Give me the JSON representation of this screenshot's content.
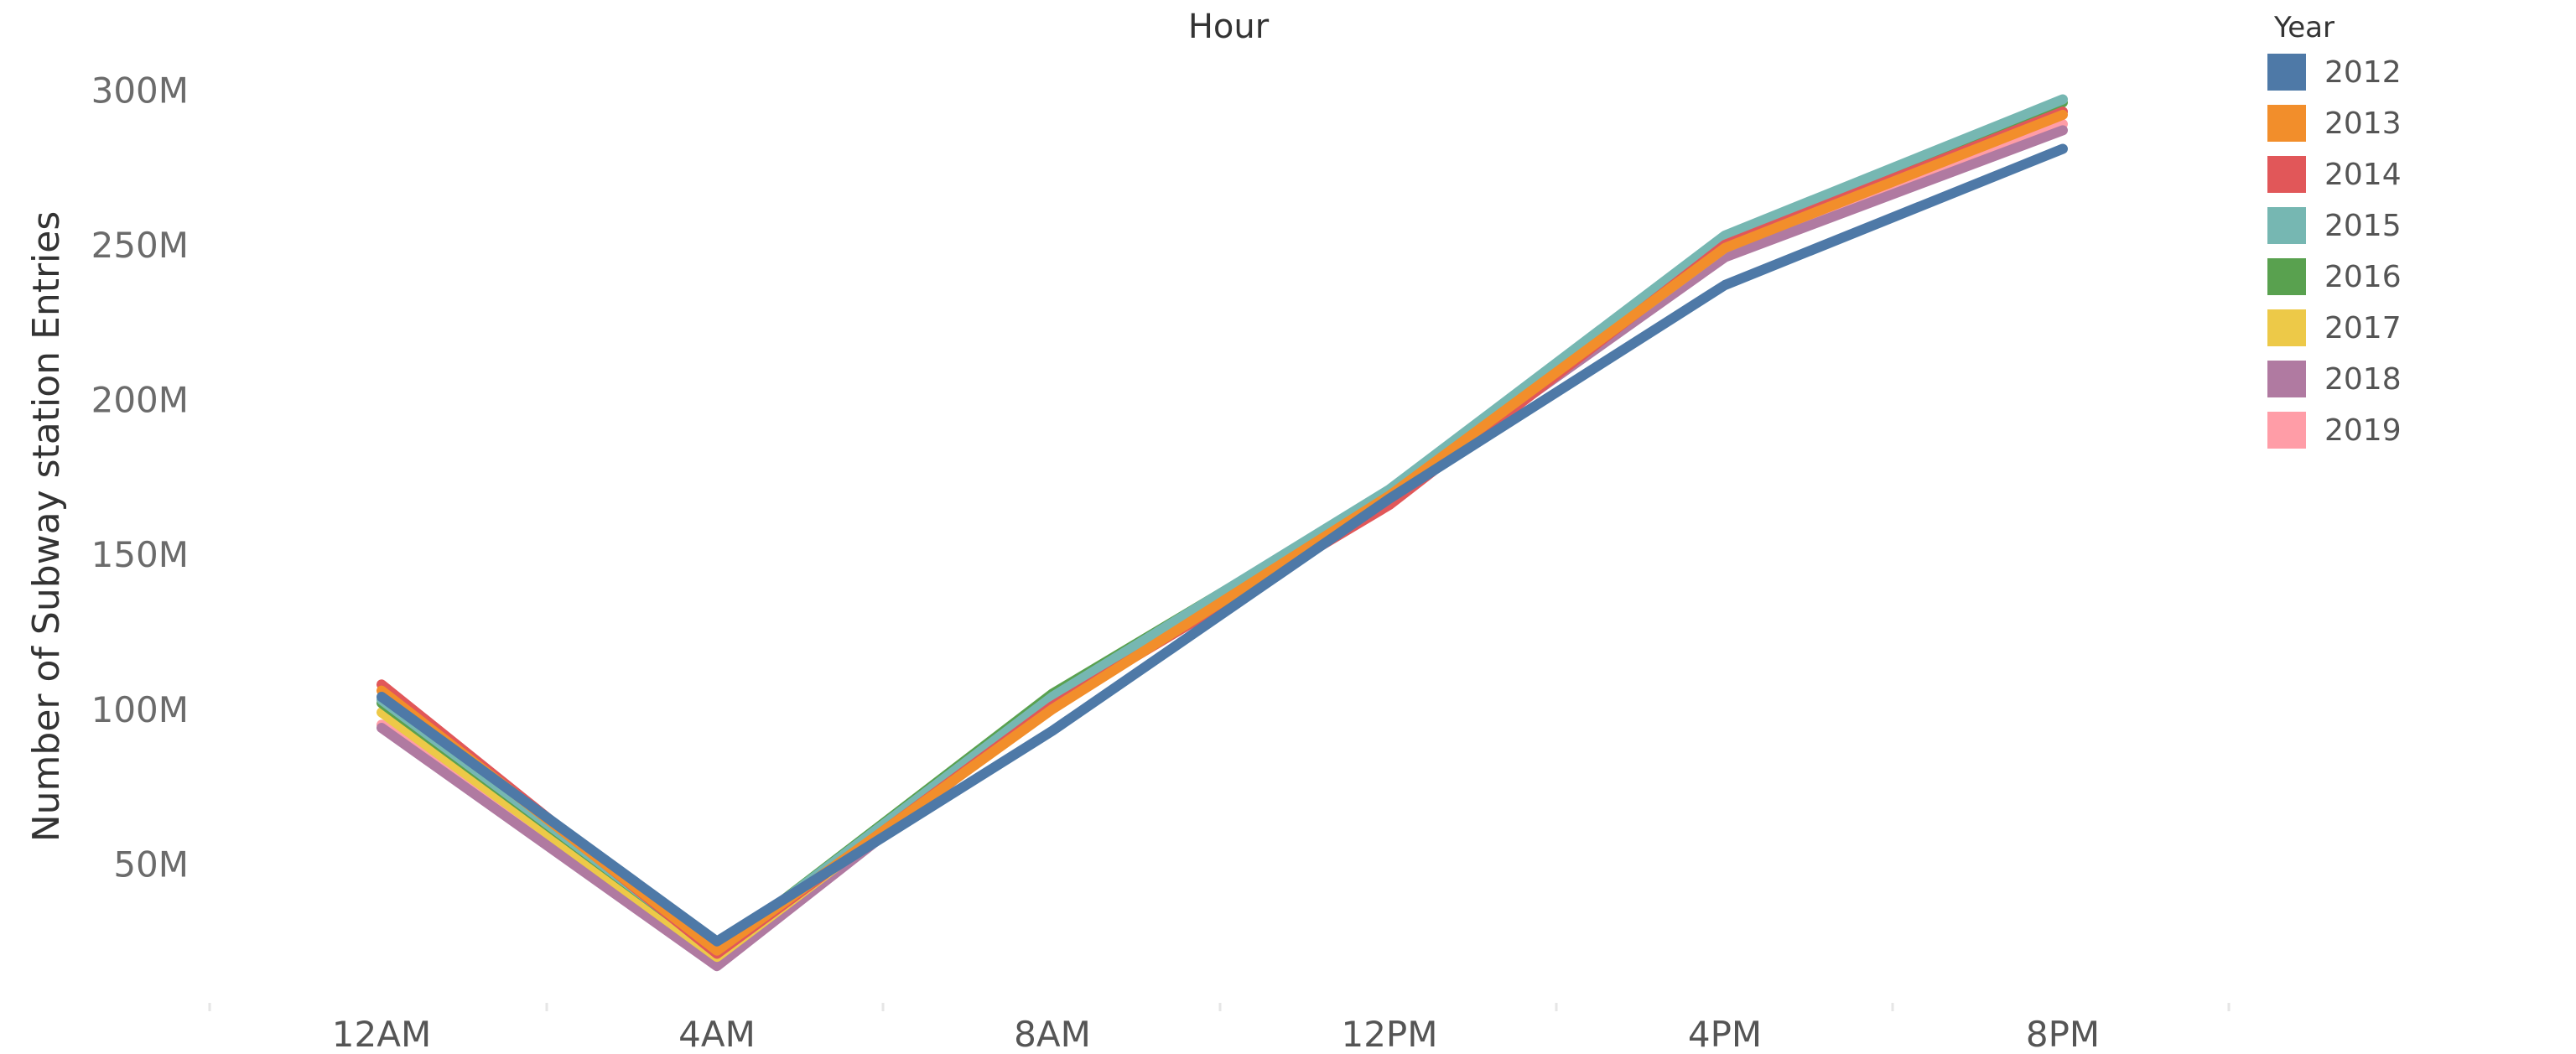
{
  "chart_data": {
    "type": "line",
    "title": "Hour",
    "xlabel": "",
    "ylabel": "Number of Subway station Entries",
    "categories": [
      "12AM",
      "4AM",
      "8AM",
      "12PM",
      "4PM",
      "8PM"
    ],
    "yticks": [
      {
        "value": 50000000,
        "label": "50M"
      },
      {
        "value": 100000000,
        "label": "100M"
      },
      {
        "value": 150000000,
        "label": "150M"
      },
      {
        "value": 200000000,
        "label": "200M"
      },
      {
        "value": 250000000,
        "label": "250M"
      },
      {
        "value": 300000000,
        "label": "300M"
      }
    ],
    "ylim": [
      0,
      300000000
    ],
    "grid": false,
    "legend": {
      "title": "Year",
      "position": "top-right"
    },
    "series": [
      {
        "name": "2012",
        "color": "#4e79a7",
        "values": [
          104000000,
          25000000,
          93000000,
          168000000,
          237000000,
          281000000
        ]
      },
      {
        "name": "2013",
        "color": "#f28e2b",
        "values": [
          106000000,
          22000000,
          100000000,
          169000000,
          249000000,
          292000000
        ]
      },
      {
        "name": "2014",
        "color": "#e15759",
        "values": [
          108000000,
          21000000,
          101000000,
          166000000,
          250000000,
          293000000
        ]
      },
      {
        "name": "2015",
        "color": "#76b7b2",
        "values": [
          103000000,
          22000000,
          104000000,
          171000000,
          253000000,
          297000000
        ]
      },
      {
        "name": "2016",
        "color": "#59a14f",
        "values": [
          102000000,
          22000000,
          105000000,
          170000000,
          252000000,
          296000000
        ]
      },
      {
        "name": "2017",
        "color": "#edc948",
        "values": [
          99000000,
          20000000,
          102000000,
          169000000,
          249000000,
          293000000
        ]
      },
      {
        "name": "2018",
        "color": "#b07aa1",
        "values": [
          94000000,
          17000000,
          102000000,
          169000000,
          246000000,
          287000000
        ]
      },
      {
        "name": "2019",
        "color": "#ff9da7",
        "values": [
          95000000,
          18000000,
          102000000,
          169000000,
          247000000,
          289000000
        ]
      }
    ]
  }
}
